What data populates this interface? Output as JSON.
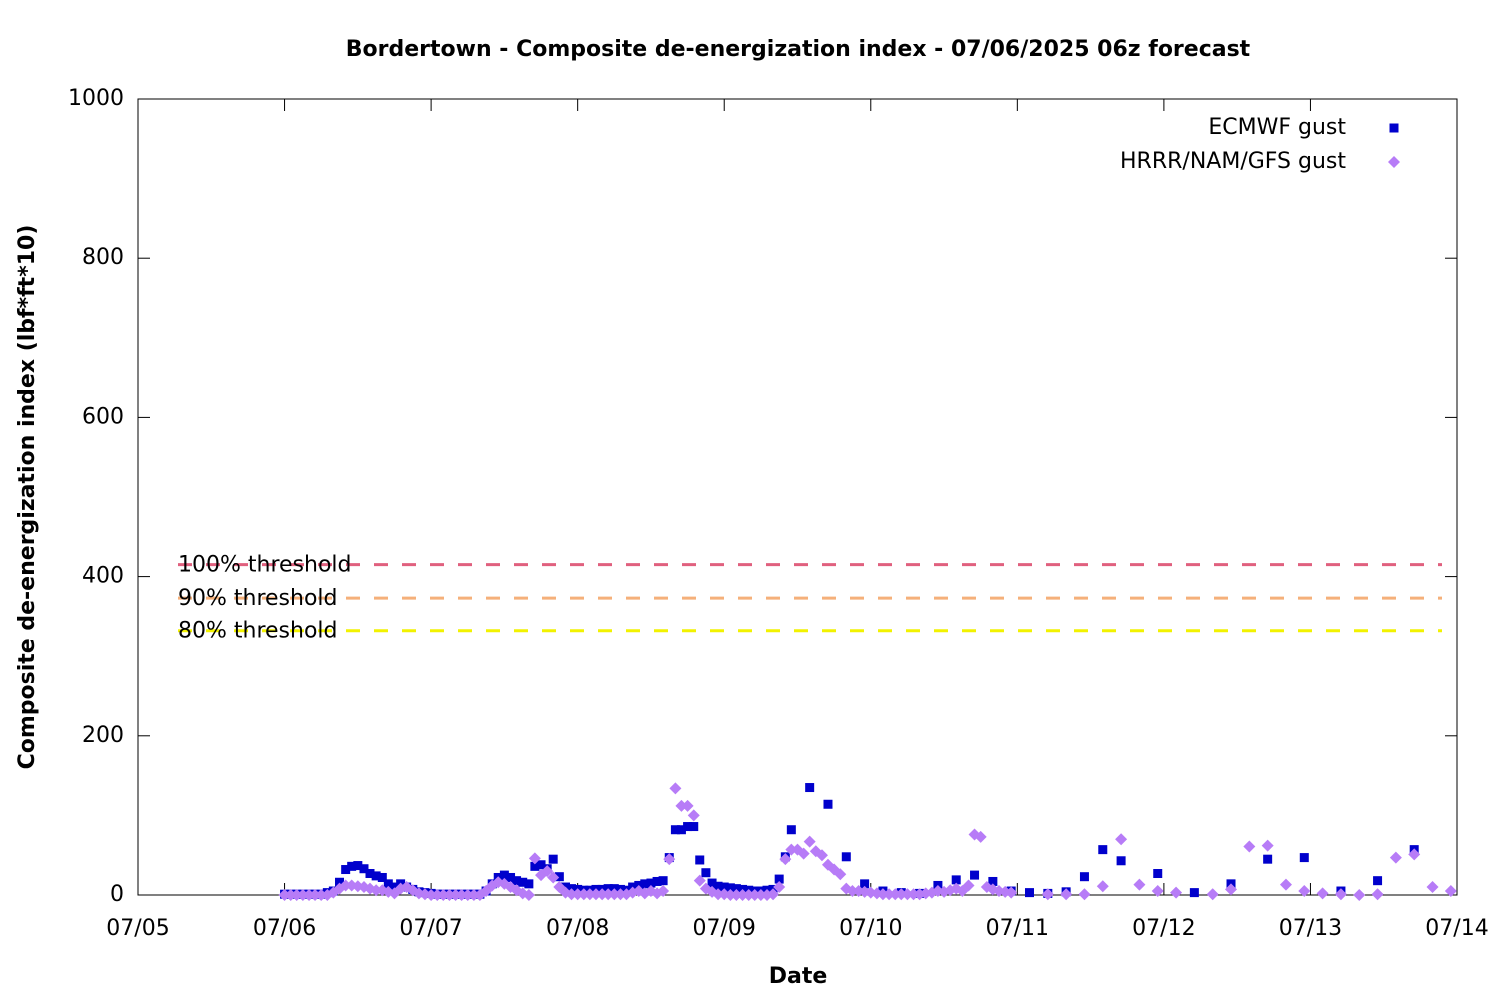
{
  "chart_data": {
    "type": "scatter",
    "title": "Bordertown - Composite de-energization index - 07/06/2025 06z forecast",
    "xlabel": "Date",
    "ylabel": "Composite de-energization index (lbf*ft*10)",
    "xlim": [
      5,
      14
    ],
    "xticks": [
      {
        "value": 5,
        "label": "07/05"
      },
      {
        "value": 6,
        "label": "07/06"
      },
      {
        "value": 7,
        "label": "07/07"
      },
      {
        "value": 8,
        "label": "07/08"
      },
      {
        "value": 9,
        "label": "07/09"
      },
      {
        "value": 10,
        "label": "07/10"
      },
      {
        "value": 11,
        "label": "07/11"
      },
      {
        "value": 12,
        "label": "07/12"
      },
      {
        "value": 13,
        "label": "07/13"
      },
      {
        "value": 14,
        "label": "07/14"
      }
    ],
    "ylim": [
      0,
      1000
    ],
    "yticks": [
      0,
      200,
      400,
      600,
      800,
      1000
    ],
    "grid": false,
    "legend": "top-right",
    "thresholds": [
      {
        "label": "100% threshold",
        "value": 415,
        "color": "#e0607e"
      },
      {
        "label": "90% threshold",
        "value": 373,
        "color": "#f5b07a"
      },
      {
        "label": "80% threshold",
        "value": 332,
        "color": "#f2f200"
      }
    ],
    "series": [
      {
        "name": "ECMWF gust",
        "color": "#0000cc",
        "marker": "square",
        "x": [
          6,
          6.042,
          6.083,
          6.125,
          6.167,
          6.208,
          6.25,
          6.292,
          6.333,
          6.375,
          6.417,
          6.458,
          6.5,
          6.542,
          6.583,
          6.625,
          6.667,
          6.708,
          6.75,
          6.792,
          6.833,
          6.875,
          6.917,
          6.958,
          7,
          7.042,
          7.083,
          7.125,
          7.167,
          7.208,
          7.25,
          7.292,
          7.333,
          7.375,
          7.417,
          7.458,
          7.5,
          7.542,
          7.583,
          7.625,
          7.667,
          7.708,
          7.75,
          7.792,
          7.833,
          7.875,
          7.917,
          7.958,
          8,
          8.042,
          8.083,
          8.125,
          8.167,
          8.208,
          8.25,
          8.292,
          8.333,
          8.375,
          8.417,
          8.458,
          8.5,
          8.542,
          8.583,
          8.625,
          8.667,
          8.708,
          8.75,
          8.792,
          8.833,
          8.875,
          8.917,
          8.958,
          9,
          9.042,
          9.083,
          9.125,
          9.167,
          9.208,
          9.25,
          9.292,
          9.333,
          9.375,
          9.417,
          9.458,
          9.583,
          9.708,
          9.833,
          9.958,
          10.083,
          10.208,
          10.333,
          10.458,
          10.583,
          10.708,
          10.833,
          10.958,
          11.083,
          11.208,
          11.333,
          11.458,
          11.583,
          11.708,
          11.958,
          12.208,
          12.458,
          12.708,
          12.958,
          13.208,
          13.458,
          13.708
        ],
        "values": [
          1,
          1,
          1,
          1,
          1,
          1,
          1,
          3,
          5,
          16,
          32,
          36,
          37,
          33,
          27,
          24,
          22,
          14,
          10,
          14,
          10,
          7,
          4,
          3,
          2,
          1,
          1,
          1,
          1,
          1,
          1,
          1,
          1,
          5,
          14,
          22,
          25,
          22,
          18,
          16,
          14,
          36,
          38,
          33,
          45,
          23,
          10,
          8,
          7,
          6,
          6,
          7,
          7,
          8,
          8,
          7,
          6,
          10,
          12,
          14,
          15,
          17,
          18,
          47,
          82,
          82,
          86,
          86,
          44,
          28,
          15,
          11,
          10,
          9,
          8,
          7,
          6,
          5,
          5,
          6,
          7,
          20,
          48,
          82,
          135,
          114,
          48,
          14,
          5,
          3,
          2,
          12,
          19,
          25,
          17,
          5,
          3,
          2,
          4,
          23,
          57,
          43,
          27,
          3,
          14,
          45,
          47,
          5,
          18,
          57
        ]
      },
      {
        "name": "HRRR/NAM/GFS gust",
        "color": "#b77cf7",
        "marker": "diamond",
        "x": [
          6,
          6.042,
          6.083,
          6.125,
          6.167,
          6.208,
          6.25,
          6.292,
          6.333,
          6.375,
          6.417,
          6.458,
          6.5,
          6.542,
          6.583,
          6.625,
          6.667,
          6.708,
          6.75,
          6.792,
          6.833,
          6.875,
          6.917,
          6.958,
          7,
          7.042,
          7.083,
          7.125,
          7.167,
          7.208,
          7.25,
          7.292,
          7.333,
          7.375,
          7.417,
          7.458,
          7.5,
          7.542,
          7.583,
          7.625,
          7.667,
          7.708,
          7.75,
          7.792,
          7.833,
          7.875,
          7.917,
          7.958,
          8,
          8.042,
          8.083,
          8.125,
          8.167,
          8.208,
          8.25,
          8.292,
          8.333,
          8.375,
          8.417,
          8.458,
          8.5,
          8.542,
          8.583,
          8.625,
          8.667,
          8.708,
          8.75,
          8.792,
          8.833,
          8.875,
          8.917,
          8.958,
          9,
          9.042,
          9.083,
          9.125,
          9.167,
          9.208,
          9.25,
          9.292,
          9.333,
          9.375,
          9.417,
          9.458,
          9.5,
          9.542,
          9.583,
          9.625,
          9.667,
          9.708,
          9.75,
          9.792,
          9.833,
          9.875,
          9.917,
          9.958,
          10,
          10.042,
          10.083,
          10.125,
          10.167,
          10.208,
          10.25,
          10.292,
          10.333,
          10.375,
          10.417,
          10.458,
          10.5,
          10.542,
          10.583,
          10.625,
          10.667,
          10.708,
          10.75,
          10.792,
          10.833,
          10.875,
          10.917,
          10.958,
          11.208,
          11.333,
          11.458,
          11.583,
          11.708,
          11.833,
          11.958,
          12.083,
          12.333,
          12.458,
          12.583,
          12.708,
          12.833,
          12.958,
          13.083,
          13.208,
          13.333,
          13.458,
          13.583,
          13.708,
          13.833,
          13.958
        ],
        "values": [
          0,
          0,
          0,
          0,
          0,
          0,
          0,
          0,
          3,
          8,
          12,
          12,
          11,
          10,
          8,
          6,
          6,
          4,
          2,
          8,
          10,
          6,
          2,
          1,
          0,
          0,
          0,
          0,
          0,
          0,
          0,
          0,
          0,
          5,
          12,
          16,
          14,
          10,
          6,
          2,
          0,
          46,
          25,
          30,
          22,
          10,
          3,
          1,
          1,
          1,
          1,
          1,
          1,
          1,
          1,
          1,
          1,
          3,
          5,
          2,
          5,
          2,
          5,
          45,
          134,
          112,
          112,
          100,
          18,
          8,
          4,
          1,
          1,
          0,
          0,
          0,
          0,
          0,
          0,
          0,
          1,
          10,
          45,
          57,
          57,
          52,
          67,
          55,
          50,
          38,
          32,
          26,
          8,
          5,
          5,
          4,
          3,
          2,
          1,
          1,
          1,
          1,
          1,
          1,
          1,
          2,
          3,
          5,
          4,
          6,
          8,
          5,
          12,
          76,
          73,
          10,
          7,
          5,
          4,
          3,
          1,
          1,
          1,
          11,
          70,
          13,
          5,
          3,
          1,
          7,
          61,
          62,
          13,
          5,
          2,
          1,
          0,
          1,
          47,
          51,
          10,
          5
        ]
      }
    ]
  }
}
